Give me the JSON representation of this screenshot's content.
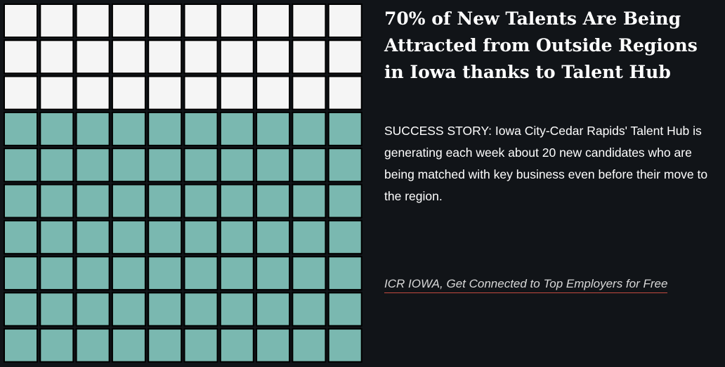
{
  "colors": {
    "background": "#111418",
    "empty": "#f5f5f5",
    "filled": "#7ab8b0",
    "gap": "#000000",
    "link_underline": "#c24b3f"
  },
  "chart_data": {
    "type": "waffle",
    "rows": 10,
    "cols": 10,
    "filled_count": 70,
    "total_count": 100,
    "fill_from": "bottom",
    "title": "70% of New Talents Are Being Attracted from Outside Regions in Iowa thanks to Talent Hub"
  },
  "headline": "70% of New Talents Are Being Attracted from Outside Regions in Iowa thanks to Talent Hub",
  "story": "SUCCESS STORY: Iowa City-Cedar Rapids' Talent Hub is generating each week about 20 new candidates who are being matched with key business even before their move to the region.",
  "cta": {
    "label": "ICR IOWA, Get Connected to Top Employers for Free"
  }
}
